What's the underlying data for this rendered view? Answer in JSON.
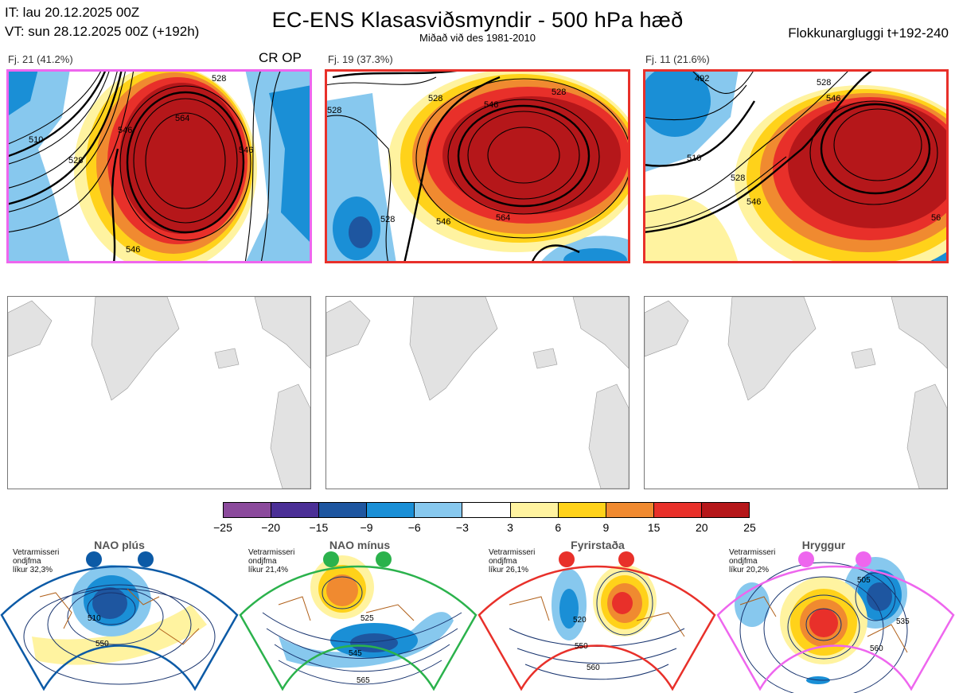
{
  "header": {
    "it_line": "IT: lau 20.12.2025 00Z",
    "vt_line": "VT: sun 28.12.2025 00Z  (+192h)",
    "title": "EC-ENS Klasasviðsmyndir - 500 hPa hæð",
    "subtitle": "Miðað við des 1981-2010",
    "window_label": "Flokkunargluggi t+192-240"
  },
  "clusters": [
    {
      "label": "Fj. 21 (41.2%)",
      "extra": "CR OP",
      "border_color": "#ee66ee",
      "contours": [
        "510",
        "528",
        "546",
        "564",
        "528",
        "546",
        "546"
      ]
    },
    {
      "label": "Fj. 19 (37.3%)",
      "extra": "",
      "border_color": "#e8302a",
      "contours": [
        "528",
        "546",
        "528",
        "546",
        "564",
        "528",
        "528"
      ]
    },
    {
      "label": "Fj. 11 (21.6%)",
      "extra": "",
      "border_color": "#e8302a",
      "contours": [
        "492",
        "528",
        "546",
        "510",
        "528",
        "546",
        "56"
      ]
    }
  ],
  "colorbar": {
    "ticks": [
      "−25",
      "−20",
      "−15",
      "−9",
      "−6",
      "−3",
      "3",
      "6",
      "9",
      "15",
      "20",
      "25"
    ],
    "colors": [
      "#8b4a9c",
      "#4b2f96",
      "#1e56a0",
      "#1a8fd6",
      "#87c8ee",
      "#ffffff",
      "#fff3a0",
      "#ffd21a",
      "#f08a30",
      "#e8302a",
      "#b5171a"
    ]
  },
  "regimes": [
    {
      "name": "NAO plús",
      "note_line1": "Vetrarmisseri",
      "note_line2": "ondjfma",
      "note_line3": "líkur 32,3%",
      "color": "#0c5aa6",
      "contours": [
        "510",
        "550"
      ]
    },
    {
      "name": "NAO mínus",
      "note_line1": "Vetrarmisseri",
      "note_line2": "ondjfma",
      "note_line3": "líkur 21,4%",
      "color": "#2bb24c",
      "contours": [
        "525",
        "545",
        "565"
      ]
    },
    {
      "name": "Fyrirstaða",
      "note_line1": "Vetrarmisseri",
      "note_line2": "ondjfma",
      "note_line3": "líkur 26,1%",
      "color": "#e8302a",
      "contours": [
        "520",
        "550",
        "560"
      ]
    },
    {
      "name": "Hryggur",
      "note_line1": "Vetrarmisseri",
      "note_line2": "ondjfma",
      "note_line3": "líkur 20,2%",
      "color": "#ee66ee",
      "contours": [
        "505",
        "535",
        "560"
      ]
    }
  ]
}
